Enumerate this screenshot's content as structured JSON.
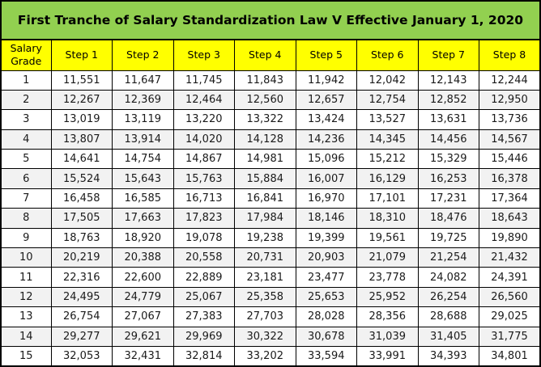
{
  "title": "First Tranche of Salary Standardization Law V Effective January 1, 2020",
  "colors": {
    "title_bg": "#92D050",
    "header_bg": "#FFFF00",
    "row_alt_bg": "#F2F2F2",
    "row_bg": "#FFFFFF",
    "border_color": "#000000",
    "text_color": "#1a1a1a"
  },
  "chart_data": {
    "type": "table",
    "title": "First Tranche of Salary Standardization Law V Effective January 1, 2020",
    "columns": [
      "Salary Grade",
      "Step 1",
      "Step 2",
      "Step 3",
      "Step 4",
      "Step 5",
      "Step 6",
      "Step 7",
      "Step 8"
    ],
    "rows": [
      [
        "1",
        "11,551",
        "11,647",
        "11,745",
        "11,843",
        "11,942",
        "12,042",
        "12,143",
        "12,244"
      ],
      [
        "2",
        "12,267",
        "12,369",
        "12,464",
        "12,560",
        "12,657",
        "12,754",
        "12,852",
        "12,950"
      ],
      [
        "3",
        "13,019",
        "13,119",
        "13,220",
        "13,322",
        "13,424",
        "13,527",
        "13,631",
        "13,736"
      ],
      [
        "4",
        "13,807",
        "13,914",
        "14,020",
        "14,128",
        "14,236",
        "14,345",
        "14,456",
        "14,567"
      ],
      [
        "5",
        "14,641",
        "14,754",
        "14,867",
        "14,981",
        "15,096",
        "15,212",
        "15,329",
        "15,446"
      ],
      [
        "6",
        "15,524",
        "15,643",
        "15,763",
        "15,884",
        "16,007",
        "16,129",
        "16,253",
        "16,378"
      ],
      [
        "7",
        "16,458",
        "16,585",
        "16,713",
        "16,841",
        "16,970",
        "17,101",
        "17,231",
        "17,364"
      ],
      [
        "8",
        "17,505",
        "17,663",
        "17,823",
        "17,984",
        "18,146",
        "18,310",
        "18,476",
        "18,643"
      ],
      [
        "9",
        "18,763",
        "18,920",
        "19,078",
        "19,238",
        "19,399",
        "19,561",
        "19,725",
        "19,890"
      ],
      [
        "10",
        "20,219",
        "20,388",
        "20,558",
        "20,731",
        "20,903",
        "21,079",
        "21,254",
        "21,432"
      ],
      [
        "11",
        "22,316",
        "22,600",
        "22,889",
        "23,181",
        "23,477",
        "23,778",
        "24,082",
        "24,391"
      ],
      [
        "12",
        "24,495",
        "24,779",
        "25,067",
        "25,358",
        "25,653",
        "25,952",
        "26,254",
        "26,560"
      ],
      [
        "13",
        "26,754",
        "27,067",
        "27,383",
        "27,703",
        "28,028",
        "28,356",
        "28,688",
        "29,025"
      ],
      [
        "14",
        "29,277",
        "29,621",
        "29,969",
        "30,322",
        "30,678",
        "31,039",
        "31,405",
        "31,775"
      ],
      [
        "15",
        "32,053",
        "32,431",
        "32,814",
        "33,202",
        "33,594",
        "33,991",
        "34,393",
        "34,801"
      ]
    ]
  }
}
